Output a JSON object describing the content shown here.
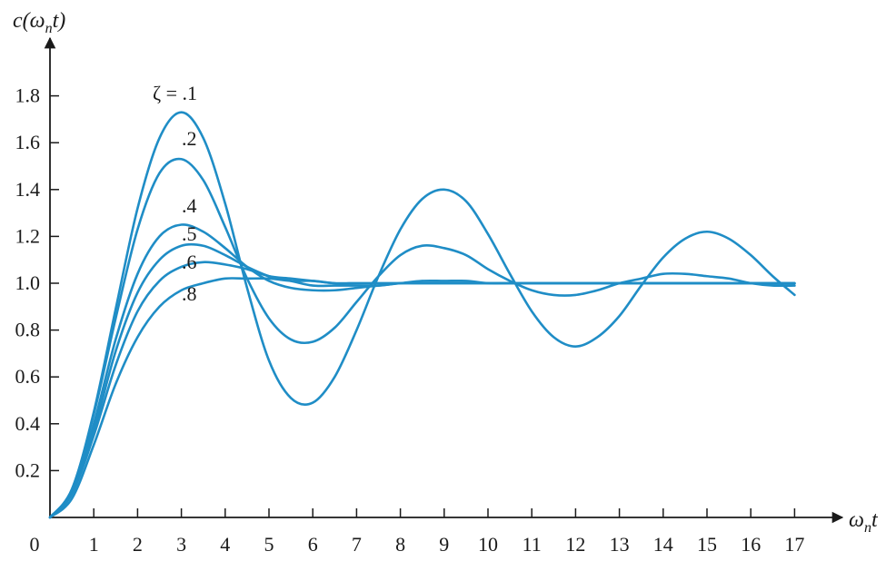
{
  "chart_data": {
    "type": "line",
    "title": "",
    "xlabel": "ω_n t",
    "ylabel": "c(ω_n t)",
    "xlim": [
      0,
      17
    ],
    "ylim": [
      0,
      1.9
    ],
    "x_ticks": [
      "0",
      "1",
      "2",
      "3",
      "4",
      "5",
      "6",
      "7",
      "8",
      "9",
      "10",
      "11",
      "12",
      "13",
      "14",
      "15",
      "16",
      "17"
    ],
    "y_ticks": [
      "0.2",
      "0.4",
      "0.6",
      "0.8",
      "1.0",
      "1.2",
      "1.4",
      "1.6",
      "1.8"
    ],
    "grid": false,
    "legend": "none",
    "line_color": "#1f8dc6",
    "x": [
      0,
      0.5,
      1,
      1.5,
      2,
      2.5,
      3,
      3.5,
      4,
      4.5,
      5,
      5.5,
      6,
      6.5,
      7,
      7.5,
      8,
      8.5,
      9,
      9.5,
      10,
      10.5,
      11,
      11.5,
      12,
      12.5,
      13,
      13.5,
      14,
      14.5,
      15,
      15.5,
      16,
      16.5,
      17
    ],
    "series": [
      {
        "name": "ζ = .1",
        "values": [
          0,
          0.12,
          0.45,
          0.89,
          1.32,
          1.62,
          1.73,
          1.62,
          1.34,
          0.98,
          0.67,
          0.51,
          0.49,
          0.6,
          0.8,
          1.03,
          1.23,
          1.36,
          1.4,
          1.35,
          1.21,
          1.04,
          0.88,
          0.77,
          0.73,
          0.77,
          0.86,
          0.99,
          1.11,
          1.19,
          1.22,
          1.19,
          1.12,
          1.03,
          0.95
        ]
      },
      {
        "name": ".2",
        "values": [
          0,
          0.12,
          0.44,
          0.85,
          1.23,
          1.47,
          1.53,
          1.44,
          1.24,
          1.02,
          0.85,
          0.76,
          0.75,
          0.81,
          0.92,
          1.03,
          1.12,
          1.16,
          1.15,
          1.12,
          1.06,
          1.01,
          0.97,
          0.95,
          0.95,
          0.97,
          1.0,
          1.02,
          1.04,
          1.04,
          1.03,
          1.02,
          1.0,
          0.99,
          0.99
        ]
      },
      {
        "name": ".4",
        "values": [
          0,
          0.11,
          0.4,
          0.76,
          1.04,
          1.2,
          1.25,
          1.22,
          1.15,
          1.07,
          1.01,
          0.98,
          0.97,
          0.97,
          0.98,
          0.99,
          1.0,
          1.01,
          1.01,
          1.01,
          1.0,
          1.0,
          1.0,
          1.0,
          1.0,
          1.0,
          1.0,
          1.0,
          1.0,
          1.0,
          1.0,
          1.0,
          1.0,
          1.0,
          1.0
        ]
      },
      {
        "name": ".5",
        "values": [
          0,
          0.1,
          0.37,
          0.71,
          0.96,
          1.1,
          1.16,
          1.16,
          1.12,
          1.07,
          1.03,
          1.01,
          0.99,
          0.99,
          0.99,
          0.99,
          1.0,
          1.0,
          1.0,
          1.0,
          1.0,
          1.0,
          1.0,
          1.0,
          1.0,
          1.0,
          1.0,
          1.0,
          1.0,
          1.0,
          1.0,
          1.0,
          1.0,
          1.0,
          1.0
        ]
      },
      {
        "name": ".6",
        "values": [
          0,
          0.1,
          0.35,
          0.65,
          0.88,
          1.01,
          1.07,
          1.09,
          1.08,
          1.06,
          1.03,
          1.02,
          1.01,
          1.0,
          1.0,
          1.0,
          1.0,
          1.0,
          1.0,
          1.0,
          1.0,
          1.0,
          1.0,
          1.0,
          1.0,
          1.0,
          1.0,
          1.0,
          1.0,
          1.0,
          1.0,
          1.0,
          1.0,
          1.0,
          1.0
        ]
      },
      {
        "name": ".8",
        "values": [
          0,
          0.08,
          0.31,
          0.57,
          0.77,
          0.9,
          0.97,
          1.0,
          1.02,
          1.02,
          1.02,
          1.01,
          1.01,
          1.0,
          1.0,
          1.0,
          1.0,
          1.0,
          1.0,
          1.0,
          1.0,
          1.0,
          1.0,
          1.0,
          1.0,
          1.0,
          1.0,
          1.0,
          1.0,
          1.0,
          1.0,
          1.0,
          1.0,
          1.0,
          1.0
        ]
      }
    ]
  }
}
